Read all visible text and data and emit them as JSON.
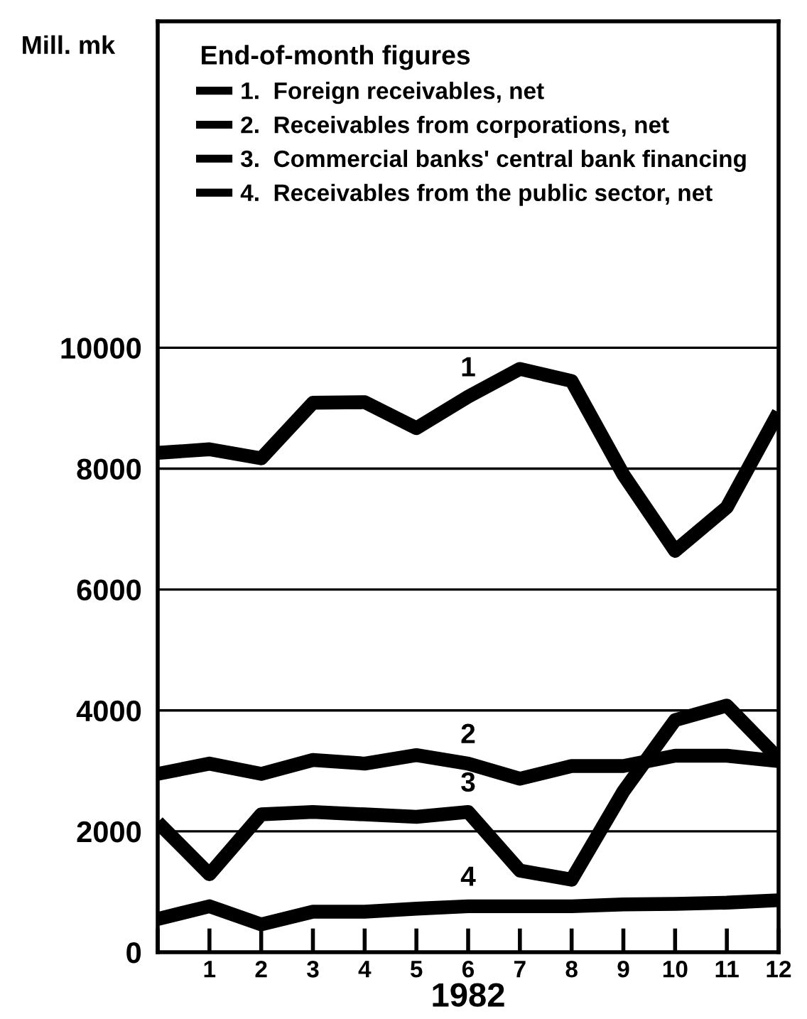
{
  "chart_data": {
    "type": "line",
    "ylabel": "Mill. mk",
    "xlabel": "1982",
    "legend_title": "End-of-month figures",
    "x": [
      0,
      1,
      2,
      3,
      4,
      5,
      6,
      7,
      8,
      9,
      10,
      11,
      12
    ],
    "xlim": [
      0,
      12
    ],
    "xticks": [
      {
        "value": 0,
        "label": null
      },
      1,
      2,
      3,
      4,
      5,
      6,
      7,
      8,
      9,
      10,
      11,
      12
    ],
    "ylim": [
      0,
      15400
    ],
    "yticks": [
      0,
      2000,
      4000,
      6000,
      8000,
      10000
    ],
    "grid": "y",
    "legend": "top left",
    "marker": "none",
    "line_style": "solid",
    "series": [
      {
        "name": "1.  Foreign receivables, net",
        "color": "#000000",
        "values": [
          8260,
          8320,
          8170,
          9090,
          9100,
          8670,
          9190,
          9650,
          9450,
          7900,
          6640,
          7360,
          8930
        ]
      },
      {
        "name": "2.  Receivables from corporations, net",
        "color": "#000000",
        "values": [
          2950,
          3120,
          2950,
          3180,
          3120,
          3260,
          3120,
          2870,
          3080,
          3080,
          3250,
          3250,
          3160
        ]
      },
      {
        "name": "3.  Commercial banks' central bank financing",
        "color": "#000000",
        "values": [
          2150,
          1290,
          2280,
          2320,
          2280,
          2240,
          2320,
          1350,
          1200,
          2660,
          3840,
          4080,
          3200
        ]
      },
      {
        "name": "4.  Receivables from the public sector, net",
        "color": "#000000",
        "values": [
          550,
          760,
          460,
          670,
          670,
          720,
          760,
          760,
          760,
          790,
          800,
          820,
          860
        ]
      }
    ],
    "annotations": [
      "1",
      "2",
      "3",
      "4"
    ]
  }
}
